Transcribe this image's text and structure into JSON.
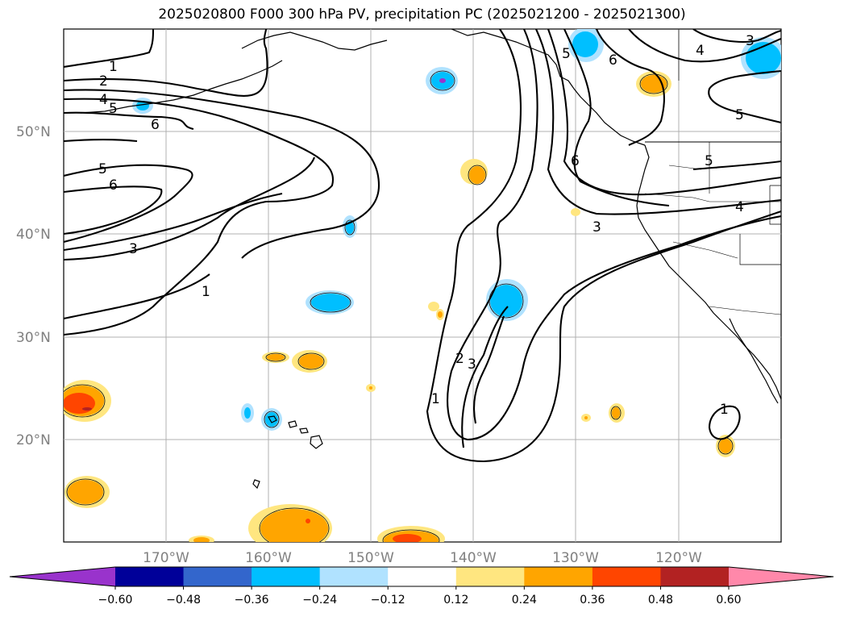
{
  "title": "2025020800 F000 300 hPa PV, precipitation PC (2025021200 - 2025021300)",
  "lat_labels": [
    "50°N",
    "40°N",
    "30°N",
    "20°N"
  ],
  "lon_labels": [
    "170°W",
    "160°W",
    "150°W",
    "140°W",
    "130°W",
    "120°W"
  ],
  "colorbar": {
    "ticks": [
      "−0.60",
      "−0.48",
      "−0.36",
      "−0.24",
      "−0.12",
      "0.12",
      "0.24",
      "0.36",
      "0.48",
      "0.60"
    ],
    "colors": [
      "#9933cc",
      "#000099",
      "#3366cc",
      "#00bfff",
      "#b0e2ff",
      "#ffffff",
      "#ffe680",
      "#ffa500",
      "#ff4500",
      "#b22222",
      "#ff88aa"
    ]
  },
  "contour_labels": [
    "1",
    "2",
    "3",
    "4",
    "5",
    "6"
  ],
  "map": {
    "projection": "plate-carree",
    "lon_range": [
      "180°W",
      "110°W"
    ],
    "lat_range": [
      "10°N",
      "60°N"
    ],
    "grid": true
  }
}
